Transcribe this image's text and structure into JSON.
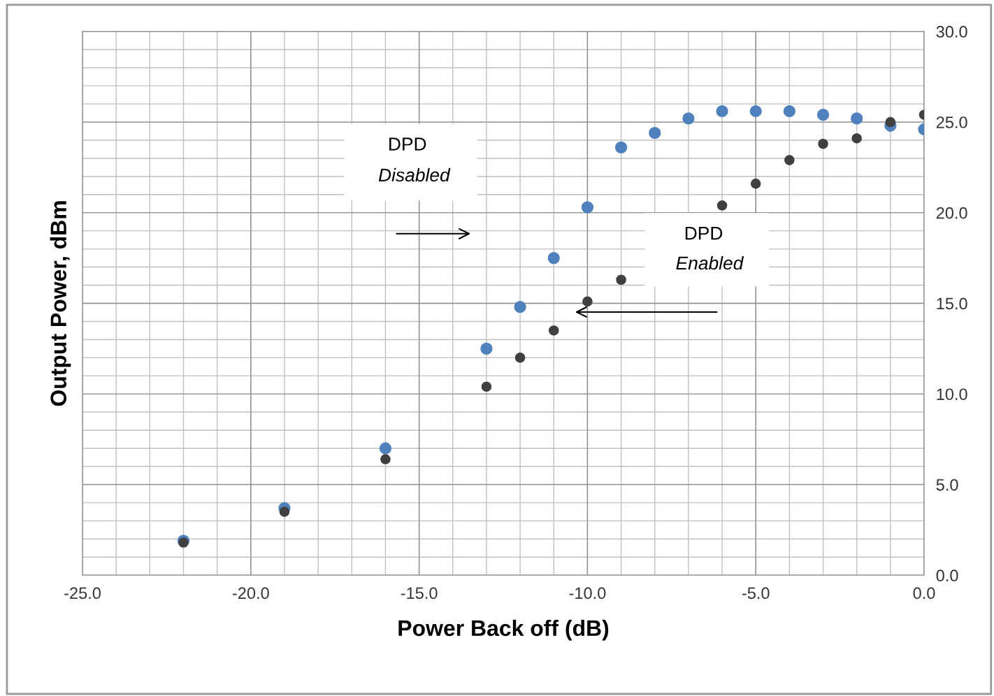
{
  "chart_data": {
    "type": "scatter",
    "xlabel": "Power Back off (dB)",
    "ylabel": "Output Power, dBm",
    "x": [
      -22,
      -19,
      -16,
      -13,
      -12,
      -11,
      -10,
      -9,
      -8,
      -7,
      -6,
      -5,
      -4,
      -3,
      -2,
      -1,
      0
    ],
    "series": [
      {
        "color": "#4f81bd",
        "values": [
          1.9,
          3.7,
          7.0,
          12.5,
          14.8,
          17.5,
          20.3,
          23.6,
          24.4,
          25.2,
          25.6,
          25.6,
          25.6,
          25.4,
          25.2,
          24.8,
          24.6
        ]
      },
      {
        "color": "#404040",
        "x": [
          -22,
          -19,
          -16,
          -13,
          -12,
          -11,
          -10,
          -9,
          -6,
          -5,
          -4,
          -3,
          -2,
          -1,
          0
        ],
        "values": [
          1.8,
          3.5,
          6.4,
          10.4,
          12.0,
          13.5,
          15.1,
          16.3,
          20.4,
          21.6,
          22.9,
          23.8,
          24.1,
          25.0,
          25.4
        ]
      }
    ],
    "xlim": [
      -25,
      0
    ],
    "ylim": [
      0,
      30
    ],
    "xticks": [
      {
        "value": -25,
        "label": "-25.0"
      },
      {
        "value": -24,
        "label": null
      },
      {
        "value": -23,
        "label": null
      },
      {
        "value": -22,
        "label": null
      },
      {
        "value": -21,
        "label": null
      },
      {
        "value": -20,
        "label": "-20.0"
      },
      {
        "value": -19,
        "label": null
      },
      {
        "value": -18,
        "label": null
      },
      {
        "value": -17,
        "label": null
      },
      {
        "value": -16,
        "label": null
      },
      {
        "value": -15,
        "label": "-15.0"
      },
      {
        "value": -14,
        "label": null
      },
      {
        "value": -13,
        "label": null
      },
      {
        "value": -12,
        "label": null
      },
      {
        "value": -11,
        "label": null
      },
      {
        "value": -10,
        "label": "-10.0"
      },
      {
        "value": -9,
        "label": null
      },
      {
        "value": -8,
        "label": null
      },
      {
        "value": -7,
        "label": null
      },
      {
        "value": -6,
        "label": null
      },
      {
        "value": -5,
        "label": "-5.0"
      },
      {
        "value": -4,
        "label": null
      },
      {
        "value": -3,
        "label": null
      },
      {
        "value": -2,
        "label": null
      },
      {
        "value": -1,
        "label": null
      },
      {
        "value": 0,
        "label": "0.0"
      }
    ],
    "yticks": [
      {
        "value": 0,
        "label": "0.0"
      },
      {
        "value": 1,
        "label": null
      },
      {
        "value": 2,
        "label": null
      },
      {
        "value": 3,
        "label": null
      },
      {
        "value": 4,
        "label": null
      },
      {
        "value": 5,
        "label": "5.0"
      },
      {
        "value": 6,
        "label": null
      },
      {
        "value": 7,
        "label": null
      },
      {
        "value": 8,
        "label": null
      },
      {
        "value": 9,
        "label": null
      },
      {
        "value": 10,
        "label": "10.0"
      },
      {
        "value": 11,
        "label": null
      },
      {
        "value": 12,
        "label": null
      },
      {
        "value": 13,
        "label": null
      },
      {
        "value": 14,
        "label": null
      },
      {
        "value": 15,
        "label": "15.0"
      },
      {
        "value": 16,
        "label": null
      },
      {
        "value": 17,
        "label": null
      },
      {
        "value": 18,
        "label": null
      },
      {
        "value": 19,
        "label": null
      },
      {
        "value": 20,
        "label": "20.0"
      },
      {
        "value": 21,
        "label": null
      },
      {
        "value": 22,
        "label": null
      },
      {
        "value": 23,
        "label": null
      },
      {
        "value": 24,
        "label": null
      },
      {
        "value": 25,
        "label": "25.0"
      },
      {
        "value": 26,
        "label": null
      },
      {
        "value": 27,
        "label": null
      },
      {
        "value": 28,
        "label": null
      },
      {
        "value": 29,
        "label": null
      },
      {
        "value": 30,
        "label": "30.0"
      }
    ],
    "grid": true,
    "marker": "circle",
    "annotations": [
      "DPD\nDisabled",
      "DPD\nEnabled"
    ]
  }
}
